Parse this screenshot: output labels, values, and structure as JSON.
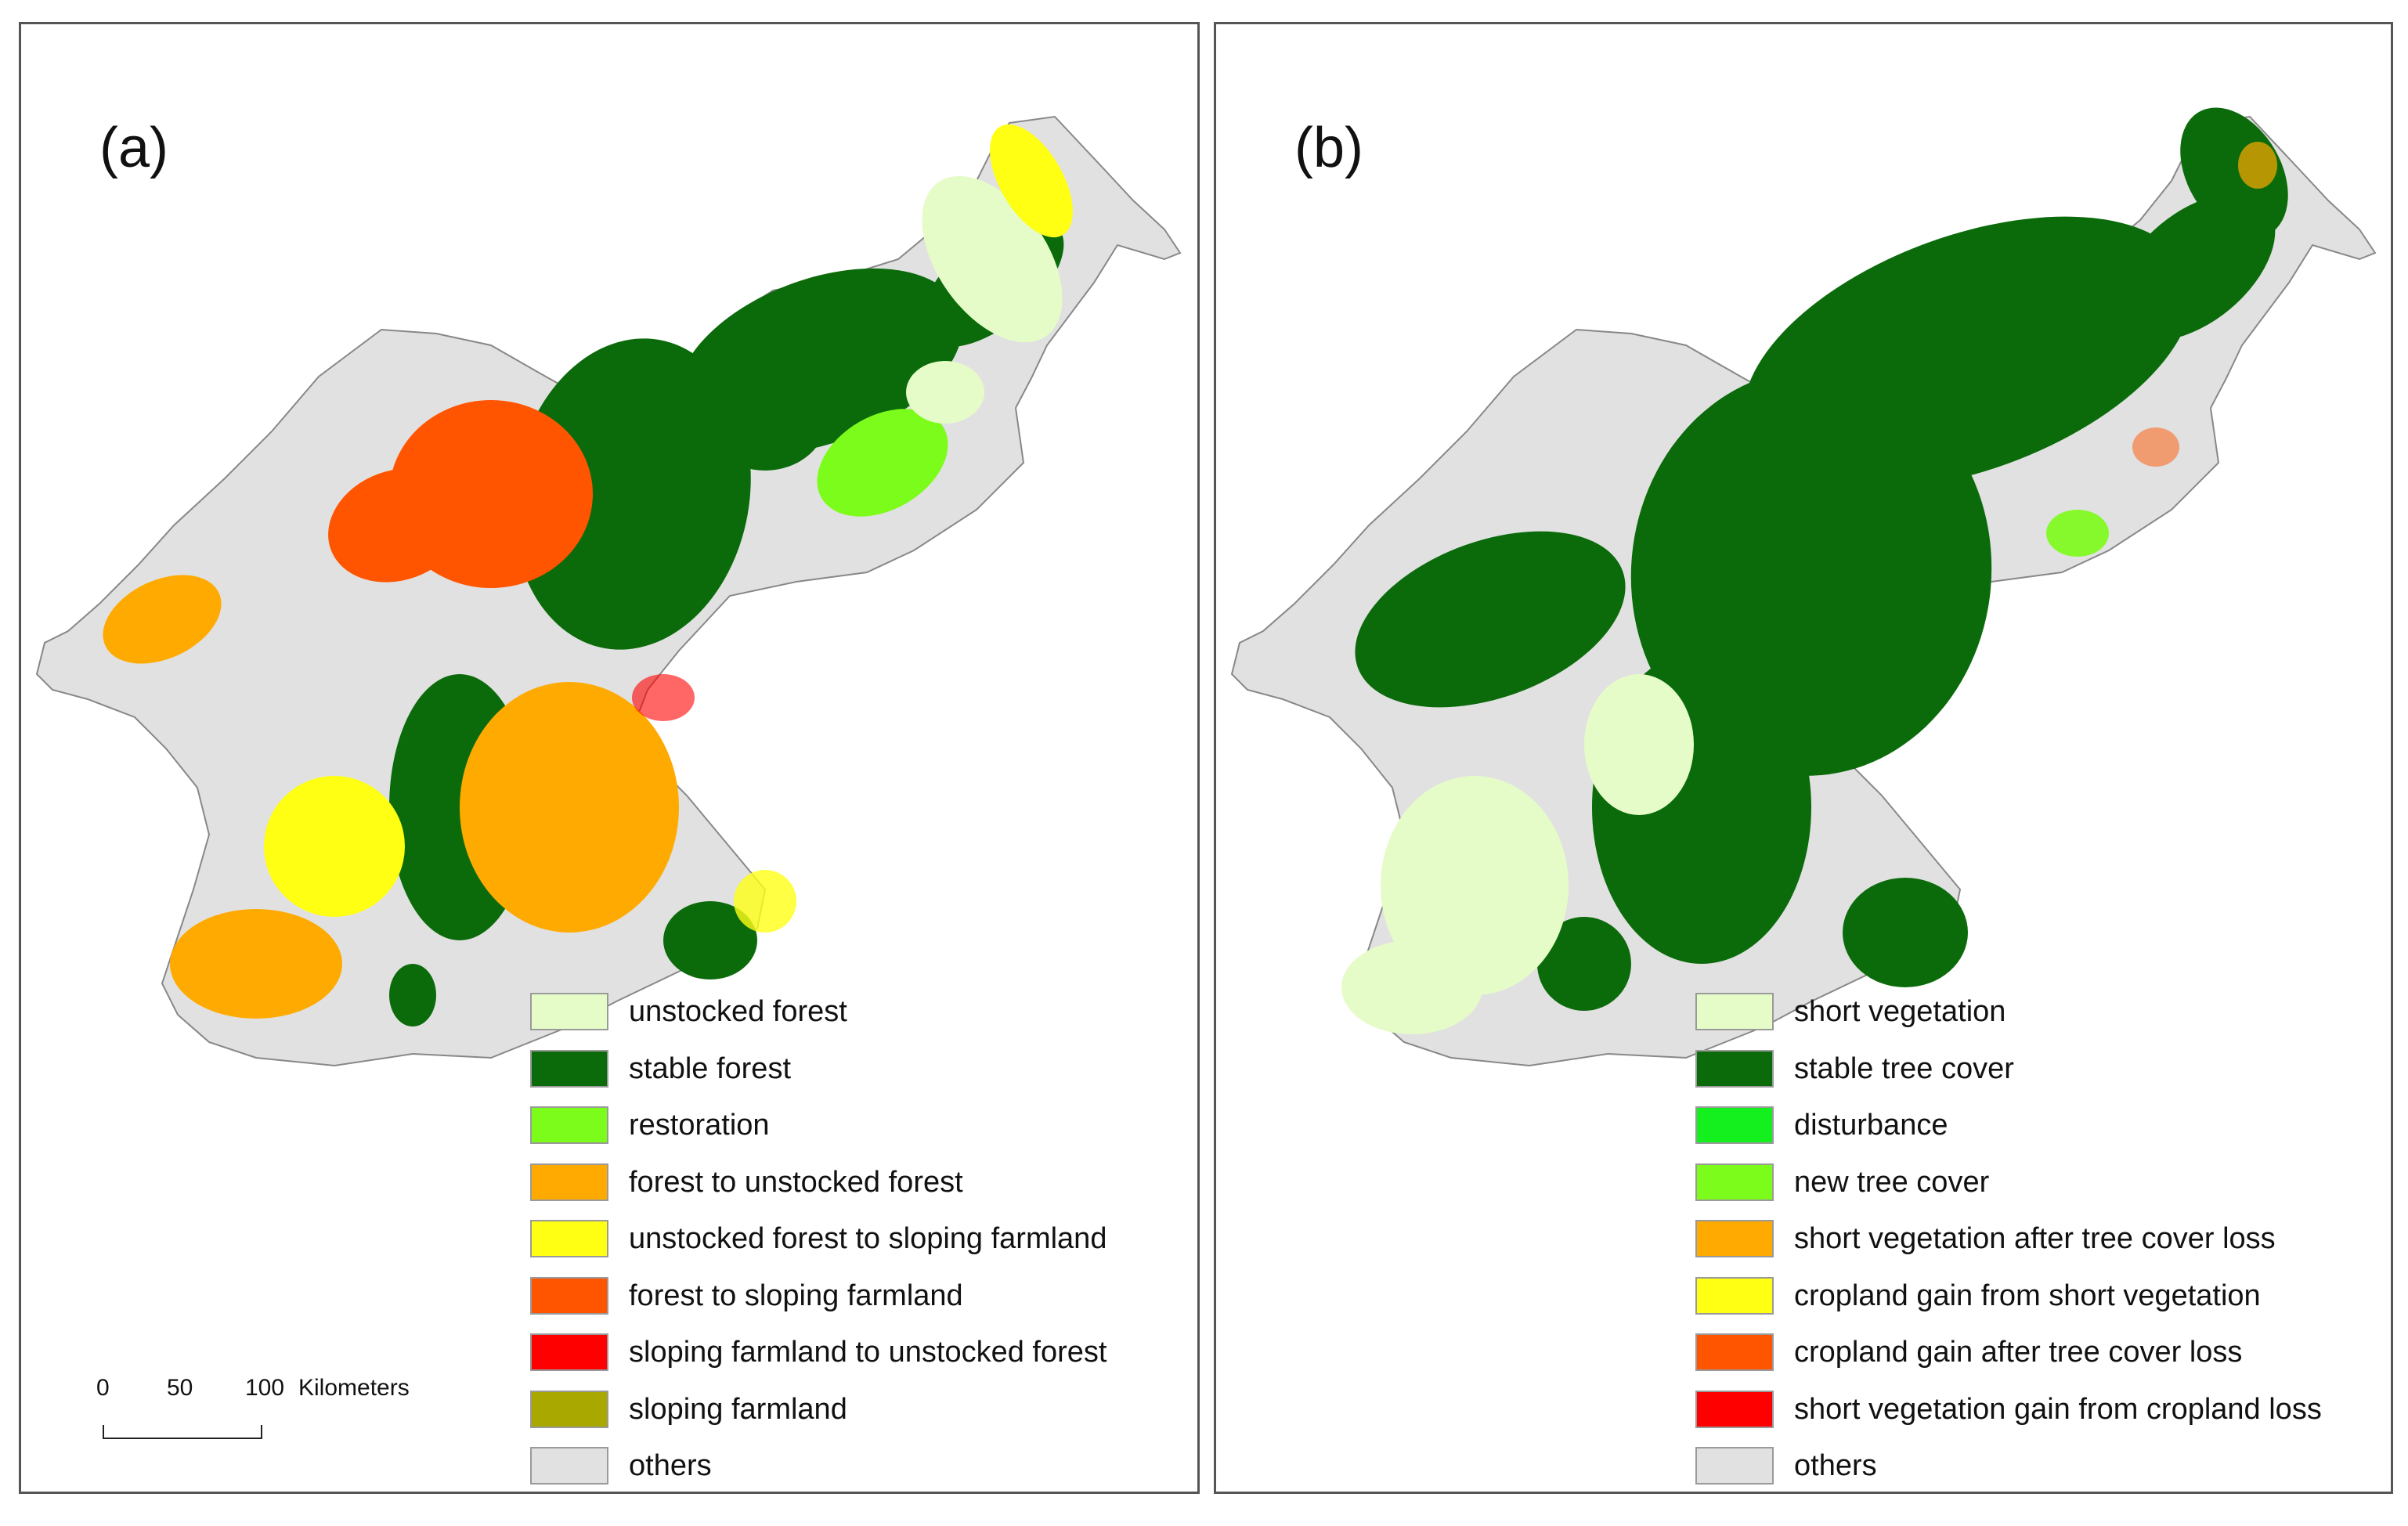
{
  "panels": {
    "a": {
      "label": "(a)",
      "legend": [
        {
          "label": "unstocked forest",
          "color": "#e6fcc8"
        },
        {
          "label": "stable forest",
          "color": "#0b6b0b"
        },
        {
          "label": "restoration",
          "color": "#7cfc1a"
        },
        {
          "label": "forest to unstocked forest",
          "color": "#ffaa00"
        },
        {
          "label": "unstocked forest to sloping farmland",
          "color": "#ffff14"
        },
        {
          "label": "forest to sloping farmland",
          "color": "#ff5500"
        },
        {
          "label": "sloping farmland to unstocked forest",
          "color": "#ff0000"
        },
        {
          "label": "sloping farmland",
          "color": "#a8a800"
        },
        {
          "label": "others",
          "color": "#e1e1e1"
        }
      ]
    },
    "b": {
      "label": "(b)",
      "legend": [
        {
          "label": "short vegetation",
          "color": "#e6fcc8"
        },
        {
          "label": "stable tree cover",
          "color": "#0b6b0b"
        },
        {
          "label": "disturbance",
          "color": "#14f01e"
        },
        {
          "label": "new tree cover",
          "color": "#7cfc1a"
        },
        {
          "label": "short vegetation after tree cover loss",
          "color": "#ffaa00"
        },
        {
          "label": "cropland gain from short vegetation",
          "color": "#ffff14"
        },
        {
          "label": "cropland gain after tree cover loss",
          "color": "#ff5500"
        },
        {
          "label": "short vegetation gain from cropland loss",
          "color": "#ff0000"
        },
        {
          "label": "others",
          "color": "#e1e1e1"
        }
      ]
    }
  },
  "scale_bar": {
    "ticks": [
      "0",
      "50",
      "100"
    ],
    "unit": "Kilometers"
  }
}
